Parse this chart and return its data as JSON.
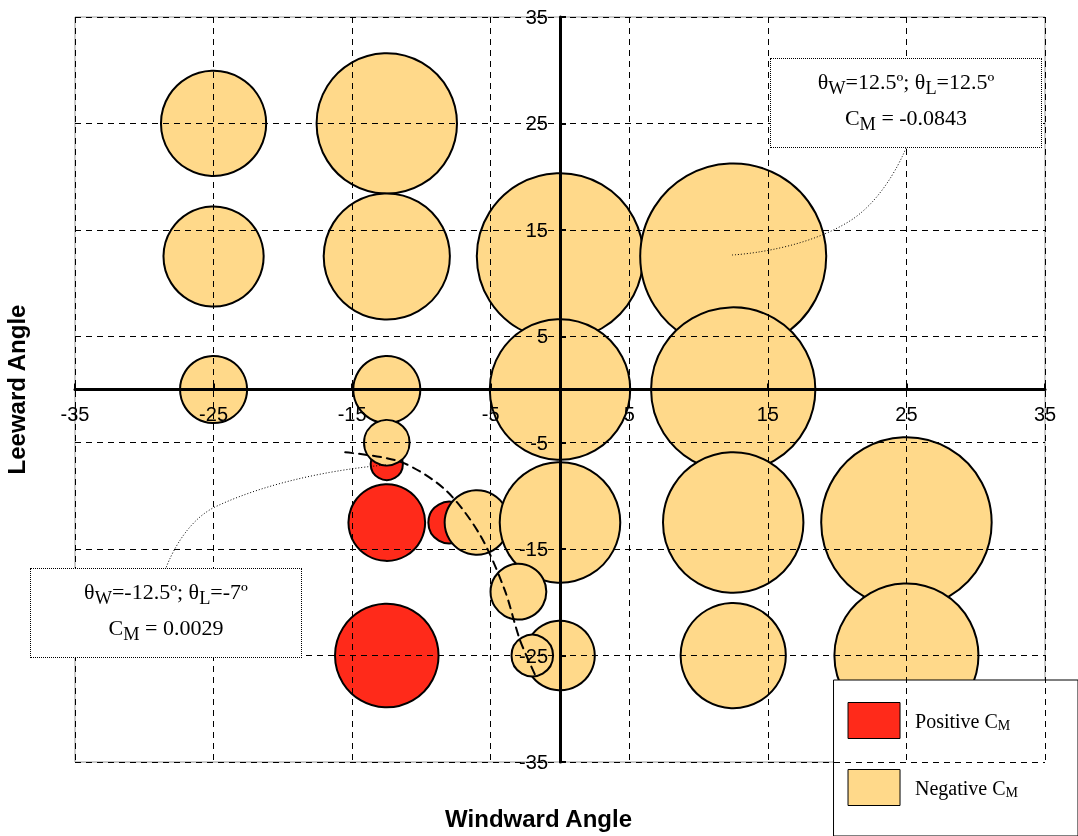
{
  "chart_data": {
    "type": "bubble",
    "xlabel": "Windward Angle",
    "ylabel": "Leeward Angle",
    "xlim": [
      -35,
      35
    ],
    "xticks": [
      -35,
      -25,
      -15,
      -5,
      5,
      15,
      25,
      35
    ],
    "ylim": [
      -35,
      35
    ],
    "yticks": [
      -35,
      -25,
      -15,
      -5,
      5,
      15,
      25,
      35
    ],
    "grid": true,
    "legend": "bottom right",
    "annotations": [
      "θ$_{W}$=12.5º; θ$_{L}$=12.5º C$_{M}$ = -0.0843",
      "θ$_{W}$=-12.5º; θ$_{L}$=-7º C$_{M}$ = 0.0029"
    ],
    "series": [
      {
        "name": "Positive C$_{M}$",
        "color": "#ff2a1a",
        "x": [
          -12.5,
          -12.5,
          -8,
          -12.5
        ],
        "values": [
          -7,
          -12.5,
          -12.5,
          -25
        ],
        "sizes": [
          0.03,
          0.17,
          0.05,
          0.31
        ]
      },
      {
        "name": "Negative C$_{M}$",
        "color": "#ffd98a",
        "x": [
          -25,
          -12.5,
          -25,
          -12.5,
          0,
          12.5,
          -25,
          -12.5,
          0,
          12.5,
          -12.5,
          -6,
          0,
          12.5,
          25,
          -3,
          0,
          -2,
          12.5,
          25
        ],
        "values": [
          25,
          25,
          12.5,
          12.5,
          12.5,
          12.5,
          0,
          0,
          0,
          0,
          -5,
          -12.5,
          -12.5,
          -12.5,
          -12.5,
          -19,
          -25,
          -25,
          -25,
          -25
        ],
        "sizes": [
          0.32,
          0.57,
          0.29,
          0.46,
          0.8,
          1,
          0.13,
          0.13,
          0.57,
          0.78,
          0.06,
          0.12,
          0.42,
          0.57,
          0.84,
          0.09,
          0.14,
          0.05,
          0.32,
          0.6
        ]
      },
      {
        "type": "line",
        "color": "#000000",
        "line_style": "dashed",
        "marker": "none",
        "x": [
          -15.5,
          -11.5,
          -8.3,
          -5.8,
          -4,
          -2.9,
          -1.8
        ],
        "values": [
          -5.9,
          -6.8,
          -9.4,
          -13.6,
          -18.8,
          -23.5,
          -26.8
        ]
      }
    ]
  }
}
